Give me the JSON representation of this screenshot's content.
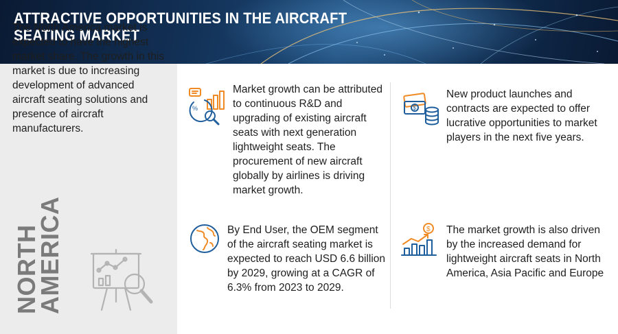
{
  "header": {
    "title": "ATTRACTIVE OPPORTUNITIES IN THE AIRCRAFT SEATING MARKET"
  },
  "left_panel": {
    "summary": "The North America market is expected to have the highest market share. The growth in this market is due to increasing development of advanced aircraft seating solutions and presence of aircraft manufacturers.",
    "region_line1": "NORTH",
    "region_line2": "AMERICA",
    "illustration_icon": "presentation-board-magnifier-icon"
  },
  "items": [
    {
      "icon": "growth-chart-analysis-icon",
      "text": "Market growth can be attributed to continuous R&D and upgrading of existing aircraft seats with next generation lightweight seats. The procurement of new aircraft globally by airlines is driving market growth."
    },
    {
      "icon": "money-coins-icon",
      "text": "New product launches and contracts are expected to offer lucrative opportunities to market players in the next five years."
    },
    {
      "icon": "globe-icon",
      "text": "By End User, the OEM segment of the aircraft seating market is expected to reach USD 6.6 billion by 2029, growing at a CAGR of 6.3% from 2023 to 2029."
    },
    {
      "icon": "dollar-growth-chart-icon",
      "text": "The market growth is also driven by the increased demand for lightweight aircraft seats in North America, Asia Pacific and Europe"
    }
  ],
  "colors": {
    "header_dark": "#0a1a33",
    "header_mid": "#1d4a78",
    "accent_orange": "#f08a24",
    "accent_blue": "#1f5e9c",
    "left_panel_bg": "#ececec",
    "region_text": "#7b7b7b"
  }
}
